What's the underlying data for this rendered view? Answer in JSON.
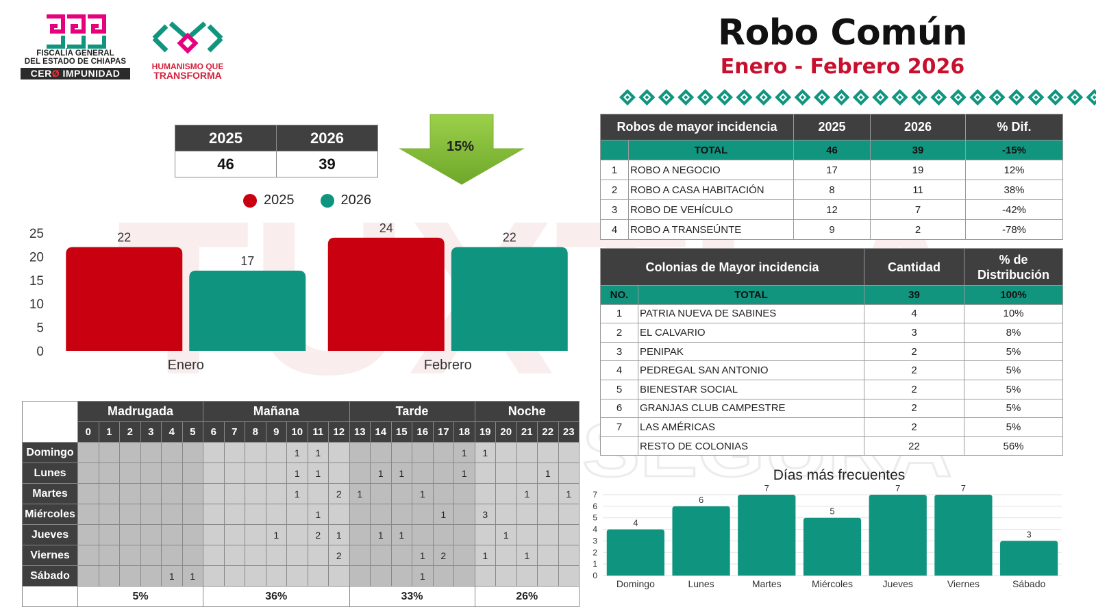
{
  "header": {
    "logo_fge_line1": "FISCALÍA GENERAL",
    "logo_fge_line2": "DEL ESTADO DE CHIAPAS",
    "logo_fge_badge_a": "CER",
    "logo_fge_badge_b": "Ø",
    "logo_fge_badge_c": " IMPUNIDAD",
    "logo_hum_line1": "HUMANISMO QUE",
    "logo_hum_line2": "TRANSFORMA",
    "title": "Robo Común",
    "subtitle": "Enero - Febrero 2026"
  },
  "watermark": {
    "word_top": "TUXTLA",
    "word_bottom": "SEGURA"
  },
  "summary": {
    "year_a": "2025",
    "year_b": "2026",
    "total_a": "46",
    "total_b": "39",
    "change_label": "15%"
  },
  "colors": {
    "series_2025": "#c8000f",
    "series_2026": "#0f9480",
    "header_dark": "#3f3f3f",
    "total_row": "#11957f",
    "title_red": "#c8102e",
    "arrow_green": "#8dc63f"
  },
  "chart_data": [
    {
      "type": "bar",
      "categories": [
        "Enero",
        "Febrero"
      ],
      "series": [
        {
          "name": "2025",
          "values": [
            22,
            24
          ]
        },
        {
          "name": "2026",
          "values": [
            17,
            22
          ]
        }
      ],
      "title": "",
      "xlabel": "",
      "ylabel": "",
      "ylim": [
        0,
        25
      ],
      "yticks": [
        0,
        5,
        10,
        15,
        20,
        25
      ],
      "legend": "top",
      "grid": false
    },
    {
      "type": "bar",
      "title": "Días más frecuentes",
      "categories": [
        "Domingo",
        "Lunes",
        "Martes",
        "Miércoles",
        "Jueves",
        "Viernes",
        "Sábado"
      ],
      "values": [
        4,
        6,
        7,
        5,
        7,
        7,
        3
      ],
      "xlabel": "",
      "ylabel": "",
      "ylim": [
        0,
        7
      ],
      "yticks": [
        0,
        1,
        2,
        3,
        4,
        5,
        6,
        7
      ],
      "grid": true
    }
  ],
  "hours_table": {
    "periods": [
      {
        "label": "Madrugada",
        "span": 6,
        "pct": "5%"
      },
      {
        "label": "Mañana",
        "span": 7,
        "pct": "36%"
      },
      {
        "label": "Tarde",
        "span": 6,
        "pct": "33%"
      },
      {
        "label": "Noche",
        "span": 5,
        "pct": "26%"
      }
    ],
    "hours": [
      "0",
      "1",
      "2",
      "3",
      "4",
      "5",
      "6",
      "7",
      "8",
      "9",
      "10",
      "11",
      "12",
      "13",
      "14",
      "15",
      "16",
      "17",
      "18",
      "19",
      "20",
      "21",
      "22",
      "23"
    ],
    "rows": [
      {
        "day": "Domingo",
        "cells": [
          "",
          "",
          "",
          "",
          "",
          "",
          "",
          "",
          "",
          "",
          "1",
          "1",
          "",
          "",
          "",
          "",
          "",
          "",
          "1",
          "1",
          "",
          "",
          "",
          ""
        ]
      },
      {
        "day": "Lunes",
        "cells": [
          "",
          "",
          "",
          "",
          "",
          "",
          "",
          "",
          "",
          "",
          "1",
          "1",
          "",
          "",
          "1",
          "1",
          "",
          "",
          "1",
          "",
          "",
          "",
          "1",
          ""
        ]
      },
      {
        "day": "Martes",
        "cells": [
          "",
          "",
          "",
          "",
          "",
          "",
          "",
          "",
          "",
          "",
          "1",
          "",
          "2",
          "1",
          "",
          "",
          "1",
          "",
          "",
          "",
          "",
          "1",
          "",
          "1"
        ]
      },
      {
        "day": "Miércoles",
        "cells": [
          "",
          "",
          "",
          "",
          "",
          "",
          "",
          "",
          "",
          "",
          "",
          "1",
          "",
          "",
          "",
          "",
          "",
          "1",
          "",
          "3",
          "",
          "",
          "",
          ""
        ]
      },
      {
        "day": "Jueves",
        "cells": [
          "",
          "",
          "",
          "",
          "",
          "",
          "",
          "",
          "",
          "1",
          "",
          "2",
          "1",
          "",
          "1",
          "1",
          "",
          "",
          "",
          "",
          "1",
          "",
          "",
          ""
        ]
      },
      {
        "day": "Viernes",
        "cells": [
          "",
          "",
          "",
          "",
          "",
          "",
          "",
          "",
          "",
          "",
          "",
          "",
          "2",
          "",
          "",
          "",
          "1",
          "2",
          "",
          "1",
          "",
          "1",
          "",
          ""
        ]
      },
      {
        "day": "Sábado",
        "cells": [
          "",
          "",
          "",
          "",
          "1",
          "1",
          "",
          "",
          "",
          "",
          "",
          "",
          "",
          "",
          "",
          "",
          "1",
          "",
          "",
          "",
          "",
          "",
          "",
          ""
        ]
      }
    ]
  },
  "robos_table": {
    "headers": [
      "Robos de mayor incidencia",
      "2025",
      "2026",
      "% Dif."
    ],
    "total": {
      "label": "TOTAL",
      "a": "46",
      "b": "39",
      "dif": "-15%"
    },
    "rows": [
      {
        "no": "1",
        "name": "ROBO A NEGOCIO",
        "a": "17",
        "b": "19",
        "dif": "12%"
      },
      {
        "no": "2",
        "name": "ROBO A CASA HABITACIÓN",
        "a": "8",
        "b": "11",
        "dif": "38%"
      },
      {
        "no": "3",
        "name": "ROBO DE VEHÍCULO",
        "a": "12",
        "b": "7",
        "dif": "-42%"
      },
      {
        "no": "4",
        "name": "ROBO A TRANSEÚNTE",
        "a": "9",
        "b": "2",
        "dif": "-78%"
      }
    ]
  },
  "colonias_table": {
    "headers": [
      "Colonias de Mayor incidencia",
      "Cantidad",
      "% de Distribución"
    ],
    "total": {
      "no": "NO.",
      "label": "TOTAL",
      "qty": "39",
      "pct": "100%"
    },
    "rows": [
      {
        "no": "1",
        "name": "PATRIA NUEVA DE SABINES",
        "qty": "4",
        "pct": "10%"
      },
      {
        "no": "2",
        "name": "EL CALVARIO",
        "qty": "3",
        "pct": "8%"
      },
      {
        "no": "3",
        "name": "PENIPAK",
        "qty": "2",
        "pct": "5%"
      },
      {
        "no": "4",
        "name": "PEDREGAL SAN ANTONIO",
        "qty": "2",
        "pct": "5%"
      },
      {
        "no": "5",
        "name": "BIENESTAR SOCIAL",
        "qty": "2",
        "pct": "5%"
      },
      {
        "no": "6",
        "name": "GRANJAS CLUB CAMPESTRE",
        "qty": "2",
        "pct": "5%"
      },
      {
        "no": "7",
        "name": "LAS AMÉRICAS",
        "qty": "2",
        "pct": "5%"
      },
      {
        "no": "",
        "name": "RESTO DE COLONIAS",
        "qty": "22",
        "pct": "56%"
      }
    ]
  }
}
